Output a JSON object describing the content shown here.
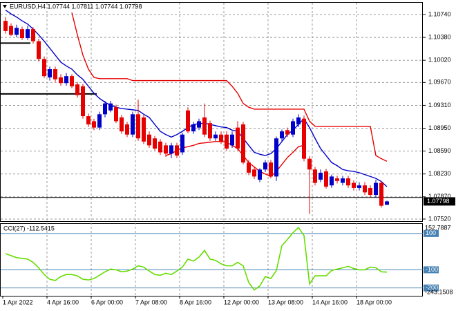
{
  "chart_data": [
    {
      "type": "candlestick",
      "title": "EURUSD,H4 1.07744 1.07811 1.07744 1.07798",
      "categories": [
        "1 Apr 2022",
        null,
        null,
        null,
        null,
        null,
        null,
        null,
        "4 Apr 16:00",
        null,
        null,
        null,
        null,
        null,
        null,
        null,
        "6 Apr 00:00",
        null,
        null,
        null,
        null,
        null,
        null,
        null,
        "7 Apr 08:00",
        null,
        null,
        null,
        null,
        null,
        null,
        null,
        "8 Apr 16:00",
        null,
        null,
        null,
        null,
        null,
        null,
        null,
        "12 Apr 00:00",
        null,
        null,
        null,
        null,
        null,
        null,
        null,
        "13 Apr 08:00",
        null,
        null,
        null,
        null,
        null,
        null,
        null,
        "14 Apr 16:00",
        null,
        null,
        null,
        null,
        null,
        null,
        null,
        "18 Apr 00:00",
        null,
        null,
        null,
        null,
        null
      ],
      "open": [
        1.1064,
        1.1056,
        1.1042,
        1.1051,
        1.1037,
        1.1051,
        1.1032,
        1.1004,
        1.0975,
        1.0988,
        1.0975,
        1.0966,
        1.0977,
        1.0964,
        1.0961,
        1.0914,
        1.0906,
        1.0896,
        1.0917,
        1.0923,
        1.0928,
        1.0912,
        1.0901,
        1.0885,
        1.0917,
        1.0912,
        1.0885,
        1.0879,
        1.0874,
        1.0868,
        1.0855,
        1.0868,
        1.0857,
        1.0923,
        1.089,
        1.0896,
        1.0912,
        1.0903,
        1.0879,
        1.0885,
        1.0885,
        1.0868,
        1.0896,
        1.0901,
        1.0841,
        1.083,
        1.0814,
        1.083,
        1.0841,
        1.0819,
        1.0879,
        1.0892,
        1.0885,
        1.0901,
        1.091,
        1.0847,
        1.083,
        1.0814,
        1.0827,
        1.0805,
        1.0816,
        1.0809,
        1.0816,
        1.0809,
        1.0801,
        1.0805,
        1.0801,
        1.079,
        1.0809,
        1.07744
      ],
      "high": [
        1.107,
        1.106,
        1.1058,
        1.1055,
        1.1056,
        1.1054,
        1.1036,
        1.1008,
        1.0992,
        1.0992,
        1.098,
        1.0982,
        1.098,
        1.0968,
        1.0965,
        1.0918,
        1.091,
        1.0921,
        1.0938,
        1.0938,
        1.0932,
        1.0916,
        1.0905,
        1.0921,
        1.094,
        1.0916,
        1.089,
        1.0883,
        1.0878,
        1.0872,
        1.0872,
        1.0872,
        1.0888,
        1.0928,
        1.0905,
        1.091,
        1.0934,
        1.0907,
        1.089,
        1.089,
        1.089,
        1.089,
        1.0906,
        1.0905,
        1.0845,
        1.0834,
        1.0832,
        1.0845,
        1.0845,
        1.0882,
        1.0893,
        1.0896,
        1.091,
        1.0917,
        1.0915,
        1.0851,
        1.0834,
        1.083,
        1.0831,
        1.0822,
        1.082,
        1.082,
        1.082,
        1.0813,
        1.081,
        1.081,
        1.0805,
        1.0814,
        1.0812,
        1.07811
      ],
      "low": [
        1.1044,
        1.104,
        1.1038,
        1.1034,
        1.1034,
        1.1028,
        1.1,
        1.0974,
        1.097,
        1.0968,
        1.0962,
        1.0962,
        1.0958,
        1.0943,
        1.091,
        1.0897,
        1.0892,
        1.0892,
        1.0912,
        1.092,
        1.0903,
        1.0886,
        1.0881,
        1.0881,
        1.0875,
        1.087,
        1.0864,
        1.086,
        1.0853,
        1.085,
        1.0848,
        1.0848,
        1.0853,
        1.0887,
        1.0886,
        1.0892,
        1.0881,
        1.0875,
        1.0875,
        1.087,
        1.086,
        1.0864,
        1.086,
        1.0838,
        1.0821,
        1.0815,
        1.081,
        1.0826,
        1.0816,
        1.0812,
        1.0875,
        1.0881,
        1.0881,
        1.0897,
        1.0843,
        1.076,
        1.0805,
        1.081,
        1.08,
        1.0801,
        1.0808,
        1.0805,
        1.0801,
        1.0797,
        1.0797,
        1.079,
        1.0786,
        1.0786,
        1.077,
        1.07744
      ],
      "close": [
        1.1048,
        1.1042,
        1.1053,
        1.1037,
        1.1051,
        1.1032,
        1.1004,
        1.0977,
        1.0988,
        1.0972,
        1.0966,
        1.0977,
        1.0961,
        1.0947,
        1.0914,
        1.0901,
        1.0896,
        1.0917,
        1.0934,
        1.0934,
        1.0906,
        1.089,
        1.0885,
        1.0917,
        1.0879,
        1.0874,
        1.0868,
        1.0863,
        1.0857,
        1.0855,
        1.0868,
        1.0852,
        1.0885,
        1.089,
        1.0901,
        1.0906,
        1.0885,
        1.0879,
        1.0885,
        1.0874,
        1.0863,
        1.0885,
        1.0863,
        1.0841,
        1.0825,
        1.0819,
        1.083,
        1.0841,
        1.0819,
        1.0879,
        1.089,
        1.0885,
        1.0906,
        1.0912,
        1.0847,
        1.083,
        1.0809,
        1.0825,
        1.0803,
        1.0819,
        1.0812,
        1.0816,
        1.0805,
        1.0801,
        1.0805,
        1.0794,
        1.079,
        1.0809,
        1.0773,
        1.07798
      ],
      "up_color": "#0000c8",
      "down_color": "#e60000",
      "overlays": [
        {
          "color": "#e60000",
          "values": [
            null,
            null,
            null,
            null,
            null,
            null,
            null,
            null,
            null,
            null,
            null,
            null,
            1.1077,
            1.1042,
            1.101,
            1.0988,
            1.0975,
            1.0973,
            1.0973,
            1.0973,
            1.0973,
            1.0973,
            1.0973,
            1.097,
            1.097,
            1.097,
            1.097,
            1.097,
            1.097,
            1.097,
            1.097,
            1.097,
            1.097,
            1.097,
            1.097,
            1.097,
            1.097,
            1.097,
            1.097,
            1.097,
            1.097,
            1.0961,
            1.095,
            1.0934,
            1.0928,
            1.0925,
            1.0925,
            1.0925,
            1.0925,
            1.0925,
            1.0925,
            1.0925,
            1.0925,
            1.0925,
            1.0925,
            1.0906,
            1.0898,
            1.0898,
            1.0898,
            1.0898,
            1.0898,
            1.0898,
            1.0898,
            1.0898,
            1.0898,
            1.0898,
            1.0898,
            1.0852,
            1.0847,
            1.0843
          ]
        },
        {
          "color": "#0000c8",
          "values": [
            1.1081,
            1.1075,
            1.107,
            1.1064,
            1.1059,
            1.1051,
            1.1042,
            1.1032,
            1.1021,
            1.101,
            1.0999,
            1.0993,
            1.0988,
            1.0979,
            1.0972,
            1.0961,
            1.095,
            1.0942,
            1.0936,
            1.0931,
            1.0928,
            1.0926,
            1.0925,
            1.0924,
            1.0923,
            1.0917,
            1.0912,
            1.0901,
            1.089,
            1.0885,
            1.0881,
            1.0885,
            1.089,
            1.0896,
            1.0901,
            1.0902,
            1.0903,
            1.0901,
            1.0899,
            1.0897,
            1.0896,
            1.0892,
            1.089,
            1.0879,
            1.0868,
            1.0857,
            1.0854,
            1.0852,
            1.0855,
            1.0863,
            1.0874,
            1.0885,
            1.0892,
            1.0901,
            1.091,
            1.0896,
            1.0879,
            1.0863,
            1.0852,
            1.0841,
            1.0836,
            1.083,
            1.0828,
            1.0827,
            1.0825,
            1.0822,
            1.0819,
            1.0816,
            1.0811,
            1.0803
          ]
        },
        {
          "color": "#e60000",
          "values": [
            null,
            null,
            null,
            null,
            null,
            null,
            null,
            null,
            null,
            null,
            null,
            null,
            null,
            null,
            null,
            null,
            null,
            null,
            null,
            null,
            null,
            null,
            null,
            null,
            null,
            null,
            null,
            null,
            null,
            1.0852,
            1.0855,
            1.086,
            1.0864,
            1.0866,
            1.0868,
            1.0871,
            1.0872,
            1.0873,
            1.0874,
            1.0874,
            1.0873,
            1.0868,
            1.0863,
            1.0852,
            1.0841,
            1.0834,
            1.0827,
            1.0823,
            1.0819,
            1.0827,
            1.0838,
            1.0849,
            1.0857,
            1.0866,
            1.0868,
            null,
            null,
            null,
            null,
            null,
            null,
            null,
            null,
            null,
            null,
            null,
            null,
            null,
            null,
            null
          ]
        }
      ],
      "levels": [
        {
          "value": 1.1029,
          "start": 0,
          "end": 4
        },
        {
          "value": 1.0949,
          "start": 0,
          "end": 16
        },
        {
          "value": 1.0786,
          "start": 0,
          "end": 69
        }
      ],
      "last_price": {
        "value": 1.07798,
        "label": "1.07798"
      },
      "ylim": [
        1.07487,
        1.10936
      ],
      "yticks": [
        {
          "value": 1.1074,
          "label": "1.10740"
        },
        {
          "value": 1.1038,
          "label": "1.10380"
        },
        {
          "value": 1.1002,
          "label": "1.10020"
        },
        {
          "value": 1.0967,
          "label": "1.09670"
        },
        {
          "value": 1.0931,
          "label": "1.09310"
        },
        {
          "value": 1.0895,
          "label": "1.08950"
        },
        {
          "value": 1.0859,
          "label": "1.08590"
        },
        {
          "value": 1.0823,
          "label": "1.08230"
        },
        {
          "value": 1.0787,
          "label": "1.07870"
        },
        {
          "value": 1.0752,
          "label": "1.07520"
        }
      ],
      "grid": true
    },
    {
      "type": "line",
      "title": "CCI(27) -112.5415",
      "values": [
        -11,
        -22,
        -33,
        -37,
        -41,
        -59,
        -89,
        -126,
        -152,
        -159,
        -137,
        -126,
        -126,
        -133,
        -152,
        -156,
        -148,
        -130,
        -111,
        -96,
        -100,
        -111,
        -107,
        -96,
        -78,
        -85,
        -107,
        -126,
        -130,
        -119,
        -126,
        -107,
        -85,
        -41,
        -52,
        -30,
        7,
        -41,
        -48,
        -67,
        -78,
        -78,
        -59,
        -78,
        -170,
        -211,
        -189,
        -137,
        -148,
        -104,
        33,
        67,
        104,
        133,
        89,
        -178,
        -133,
        -133,
        -133,
        -104,
        -96,
        -89,
        -81,
        -93,
        -100,
        -100,
        -85,
        -89,
        -111,
        -112.5415
      ],
      "color": "#66dd00",
      "level_color": "#4682b4",
      "ylim": [
        -243.1508,
        152.7887
      ],
      "yticks": [
        100,
        -100,
        -200
      ]
    }
  ]
}
